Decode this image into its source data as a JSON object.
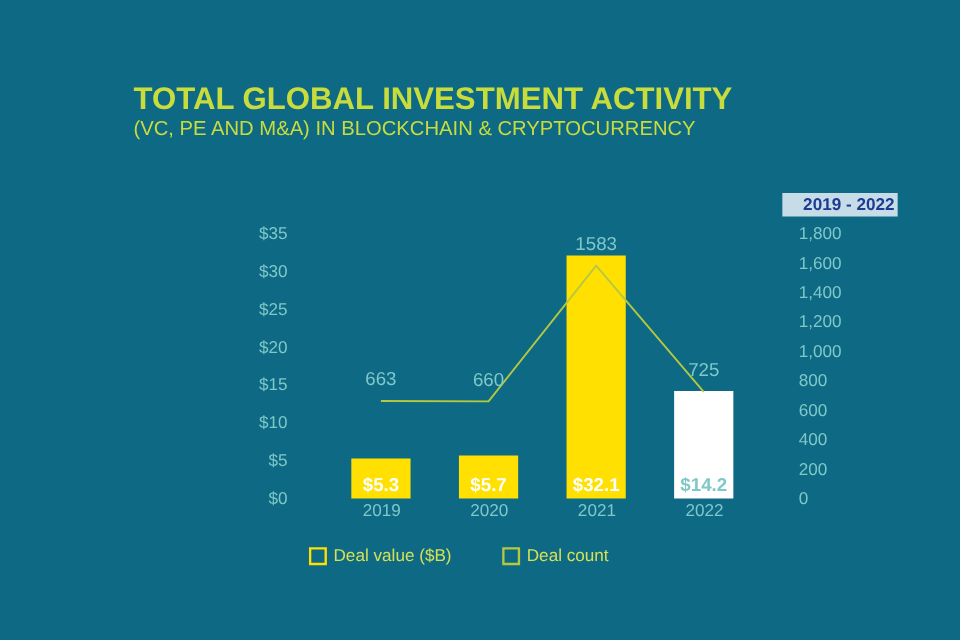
{
  "chart_data": {
    "type": "bar",
    "title": "TOTAL GLOBAL INVESTMENT ACTIVITY",
    "subtitle": "(VC, PE AND M&A) IN BLOCKCHAIN & CRYPTOCURRENCY",
    "annotations": [
      "2019 - 2022"
    ],
    "categories": [
      "2019",
      "2020",
      "2021",
      "2022"
    ],
    "series": [
      {
        "name": "Deal value ($B)",
        "color": "#ffe000",
        "colors": [
          "#ffe000",
          "#ffe000",
          "#ffe000",
          "#ffffff"
        ],
        "values": [
          5.3,
          5.7,
          32.1,
          14.2
        ],
        "value_labels": [
          "$5.3",
          "$5.7",
          "$32.1",
          "$14.2"
        ]
      },
      {
        "name": "Deal count",
        "type": "line",
        "axis": "y2",
        "color": "#b5c940",
        "values": [
          663,
          660,
          1583,
          725
        ],
        "data_labels": true
      }
    ],
    "ylim": [
      0,
      35
    ],
    "yticks": [
      {
        "value": 0,
        "label": "$0"
      },
      {
        "value": 5,
        "label": "$5"
      },
      {
        "value": 10,
        "label": "$10"
      },
      {
        "value": 15,
        "label": "$15"
      },
      {
        "value": 20,
        "label": "$20"
      },
      {
        "value": 25,
        "label": "$25"
      },
      {
        "value": 30,
        "label": "$30"
      },
      {
        "value": 35,
        "label": "$35"
      }
    ],
    "y2lim": [
      0,
      1800
    ],
    "y2ticks": [
      0,
      200,
      400,
      600,
      800,
      {
        "value": 1000,
        "label": "1,000"
      },
      {
        "value": 1200,
        "label": "1,200"
      },
      {
        "value": 1400,
        "label": "1,400"
      },
      {
        "value": 1600,
        "label": "1,600"
      },
      {
        "value": 1800,
        "label": "1,800"
      }
    ],
    "grid": false,
    "legend": "bottom"
  }
}
